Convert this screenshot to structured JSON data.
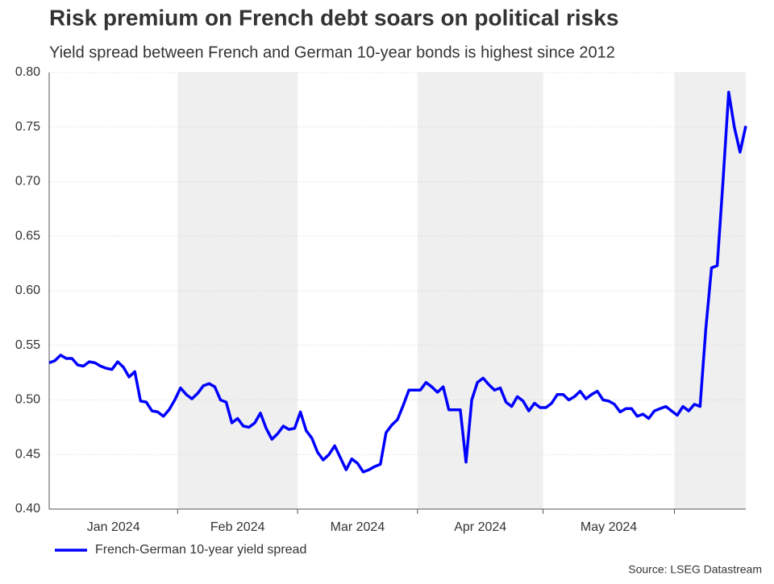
{
  "chart_data": {
    "type": "line",
    "title": "Risk premium on French debt soars on political risks",
    "subtitle": "Yield spread between French and German 10-year bonds is highest since 2012",
    "source": "Source: LSEG Datastream",
    "categories": [
      "Jan 2024",
      "Jan 2024",
      "Jan 2024",
      "Jan 2024",
      "Jan 2024",
      "Jan 2024",
      "Jan 2024",
      "Jan 2024",
      "Jan 2024",
      "Jan 2024",
      "Jan 2024",
      "Jan 2024",
      "Jan 2024",
      "Jan 2024",
      "Jan 2024",
      "Jan 2024",
      "Jan 2024",
      "Jan 2024",
      "Jan 2024",
      "Jan 2024",
      "Jan 2024",
      "Jan 2024",
      "Jan 2024",
      "Feb 2024",
      "Feb 2024",
      "Feb 2024",
      "Feb 2024",
      "Feb 2024",
      "Feb 2024",
      "Feb 2024",
      "Feb 2024",
      "Feb 2024",
      "Feb 2024",
      "Feb 2024",
      "Feb 2024",
      "Feb 2024",
      "Feb 2024",
      "Feb 2024",
      "Feb 2024",
      "Feb 2024",
      "Feb 2024",
      "Feb 2024",
      "Feb 2024",
      "Feb 2024",
      "Mar 2024",
      "Mar 2024",
      "Mar 2024",
      "Mar 2024",
      "Mar 2024",
      "Mar 2024",
      "Mar 2024",
      "Mar 2024",
      "Mar 2024",
      "Mar 2024",
      "Mar 2024",
      "Mar 2024",
      "Mar 2024",
      "Mar 2024",
      "Mar 2024",
      "Mar 2024",
      "Mar 2024",
      "Mar 2024",
      "Mar 2024",
      "Mar 2024",
      "Mar 2024",
      "Apr 2024",
      "Apr 2024",
      "Apr 2024",
      "Apr 2024",
      "Apr 2024",
      "Apr 2024",
      "Apr 2024",
      "Apr 2024",
      "Apr 2024",
      "Apr 2024",
      "Apr 2024",
      "Apr 2024",
      "Apr 2024",
      "Apr 2024",
      "Apr 2024",
      "Apr 2024",
      "Apr 2024",
      "Apr 2024",
      "Apr 2024",
      "Apr 2024",
      "Apr 2024",
      "Apr 2024",
      "May 2024",
      "May 2024",
      "May 2024",
      "May 2024",
      "May 2024",
      "May 2024",
      "May 2024",
      "May 2024",
      "May 2024",
      "May 2024",
      "May 2024",
      "May 2024",
      "May 2024",
      "May 2024",
      "May 2024",
      "May 2024",
      "May 2024",
      "May 2024",
      "May 2024",
      "May 2024",
      "May 2024",
      "May 2024",
      "May 2024",
      null,
      null,
      null,
      null,
      null,
      null,
      null,
      null,
      null,
      null,
      null,
      null,
      null
    ],
    "series": [
      {
        "name": "French-German 10-year yield spread",
        "color": "#0000ff",
        "values": [
          0.534,
          0.536,
          0.541,
          0.538,
          0.538,
          0.532,
          0.531,
          0.535,
          0.534,
          0.531,
          0.529,
          0.528,
          0.535,
          0.53,
          0.521,
          0.526,
          0.499,
          0.498,
          0.49,
          0.489,
          0.485,
          0.491,
          0.5,
          0.511,
          0.505,
          0.501,
          0.506,
          0.513,
          0.515,
          0.512,
          0.5,
          0.498,
          0.479,
          0.483,
          0.476,
          0.475,
          0.479,
          0.488,
          0.474,
          0.464,
          0.469,
          0.476,
          0.473,
          0.474,
          0.489,
          0.472,
          0.465,
          0.452,
          0.445,
          0.45,
          0.458,
          0.447,
          0.436,
          0.446,
          0.442,
          0.434,
          0.436,
          0.439,
          0.441,
          0.47,
          0.477,
          0.482,
          0.495,
          0.509,
          0.509,
          0.509,
          0.516,
          0.512,
          0.507,
          0.512,
          0.491,
          0.491,
          0.491,
          0.443,
          0.5,
          0.516,
          0.52,
          0.514,
          0.509,
          0.511,
          0.498,
          0.494,
          0.503,
          0.499,
          0.49,
          0.497,
          0.493,
          0.493,
          0.497,
          0.505,
          0.505,
          0.5,
          0.503,
          0.508,
          0.501,
          0.505,
          0.508,
          0.5,
          0.499,
          0.496,
          0.489,
          0.492,
          0.492,
          0.485,
          0.487,
          0.483,
          0.49,
          0.492,
          0.494,
          0.49,
          0.486,
          0.494,
          0.49,
          0.496,
          0.494,
          0.565,
          0.621,
          0.623,
          0.7,
          0.782,
          0.75,
          0.727,
          0.751
        ]
      }
    ],
    "ylim": [
      0.4,
      0.8
    ],
    "yticks": [
      {
        "value": 0.4,
        "label": "0.40"
      },
      {
        "value": 0.45,
        "label": "0.45"
      },
      {
        "value": 0.5,
        "label": "0.50"
      },
      {
        "value": 0.55,
        "label": "0.55"
      },
      {
        "value": 0.6,
        "label": "0.60"
      },
      {
        "value": 0.65,
        "label": "0.65"
      },
      {
        "value": 0.7,
        "label": "0.70"
      },
      {
        "value": 0.75,
        "label": "0.75"
      },
      {
        "value": 0.8,
        "label": "0.80"
      }
    ],
    "grid": true,
    "band_color": "#efefef",
    "legend": "bottom-left"
  }
}
